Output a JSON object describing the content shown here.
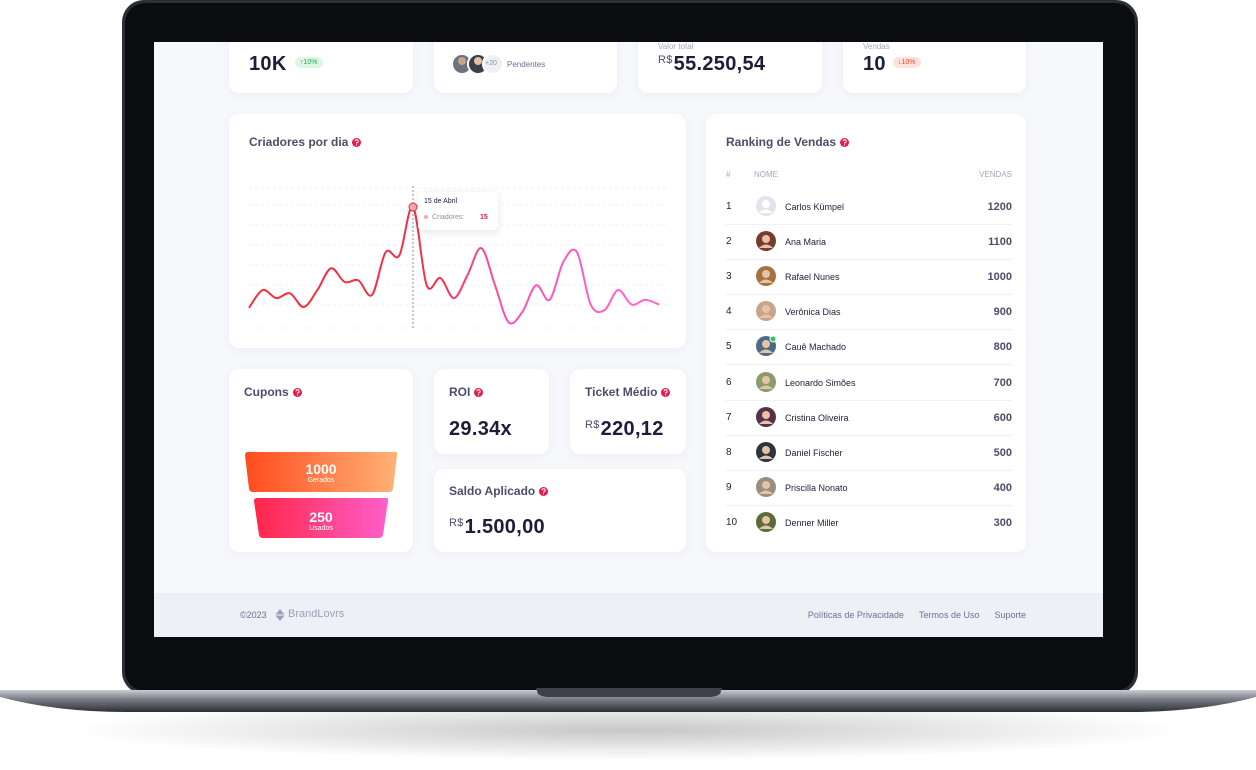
{
  "summary_cards": [
    {
      "value": "10K",
      "badge": "↑10%"
    },
    {
      "extra_count": "+20",
      "label": "Pendentes"
    },
    {
      "label": "Valor total",
      "currency": "R$",
      "value": "55.250,54"
    },
    {
      "label": "Vendas",
      "value": "10",
      "badge": "↓10%"
    }
  ],
  "creators_chart": {
    "title": "Criadores por dia",
    "values": [
      2.5,
      4.7,
      3.7,
      4.3,
      2.6,
      4.7,
      7.4,
      5.7,
      5.9,
      4.1,
      9.4,
      9.0,
      15,
      5.3,
      6.2,
      3.7,
      6.6,
      9.9,
      5.3,
      0.7,
      2.0,
      5.3,
      3.5,
      8.2,
      9.4,
      2.9,
      2.2,
      4.7,
      2.9,
      3.5,
      2.9
    ],
    "tooltip": {
      "date": "15 de Abril",
      "label": "Criadores:",
      "value": 15
    }
  },
  "ranking": {
    "title": "Ranking de Vendas",
    "columns": [
      "#",
      "NOME",
      "VENDAS"
    ],
    "rows": [
      {
        "rank": 1,
        "name": "Carlos Kümpel",
        "sales": 1200
      },
      {
        "rank": 2,
        "name": "Ana Maria",
        "sales": 1100
      },
      {
        "rank": 3,
        "name": "Rafael Nunes",
        "sales": 1000
      },
      {
        "rank": 4,
        "name": "Verônica Dias",
        "sales": 900
      },
      {
        "rank": 5,
        "name": "Cauê Machado",
        "sales": 800
      },
      {
        "rank": 6,
        "name": "Leonardo Simões",
        "sales": 700
      },
      {
        "rank": 7,
        "name": "Cristina Oliveira",
        "sales": 600
      },
      {
        "rank": 8,
        "name": "Daniel Fischer",
        "sales": 500
      },
      {
        "rank": 9,
        "name": "Priscilla Nonato",
        "sales": 400
      },
      {
        "rank": 10,
        "name": "Denner Miller",
        "sales": 300
      }
    ]
  },
  "coupons": {
    "title": "Cupons",
    "generated": {
      "value": 1000,
      "label": "Gerados"
    },
    "used": {
      "value": 250,
      "label": "Usados"
    }
  },
  "roi": {
    "title": "ROI",
    "value": "29.34x"
  },
  "ticket": {
    "title": "Ticket Médio",
    "currency": "R$",
    "value": "220,12"
  },
  "balance": {
    "title": "Saldo Aplicado",
    "currency": "R$",
    "value": "1.500,00"
  },
  "footer": {
    "copyright": "©2023",
    "brand": "BrandLovrs",
    "links": [
      "Políticas de Privacidade",
      "Termos de Uso",
      "Suporte"
    ]
  }
}
